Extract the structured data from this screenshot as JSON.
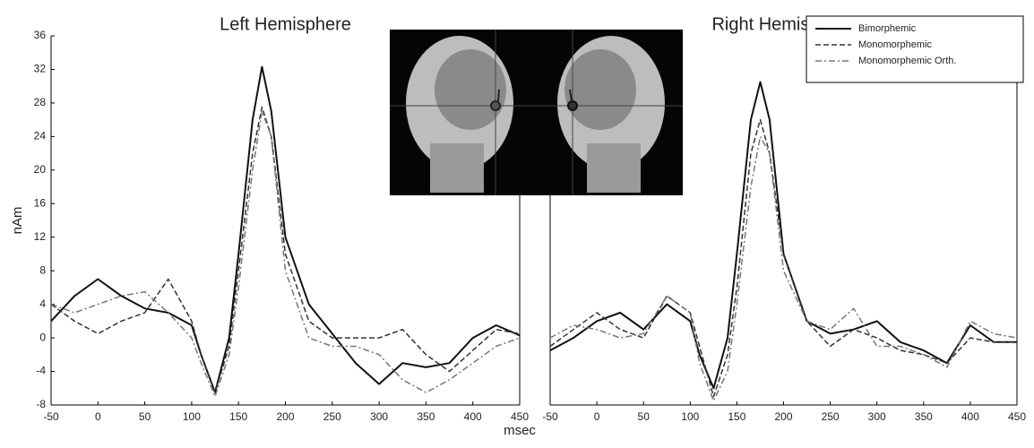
{
  "chart_data": [
    {
      "type": "line",
      "title": "Left Hemisphere",
      "ylabel": "nAm",
      "xlabel": "msec",
      "x": [
        -50,
        -25,
        0,
        25,
        50,
        75,
        100,
        110,
        125,
        140,
        150,
        165,
        175,
        185,
        200,
        225,
        250,
        275,
        300,
        325,
        350,
        375,
        400,
        425,
        450
      ],
      "series": [
        {
          "color": "#111111",
          "style": "solid",
          "values": [
            2,
            5,
            7,
            5,
            3.5,
            3,
            1.5,
            -2,
            -6.5,
            0,
            10,
            26,
            32.3,
            27,
            12,
            4,
            0.5,
            -3,
            -5.5,
            -3,
            -3.5,
            -3,
            0,
            1.5,
            0.3
          ]
        },
        {
          "color": "#333333",
          "style": "dashed",
          "values": [
            4,
            2,
            0.5,
            2,
            3,
            7,
            2,
            -2,
            -6.5,
            -1,
            8,
            22,
            27.5,
            24,
            10,
            2,
            0,
            0,
            0,
            1,
            -2,
            -4,
            -1.5,
            1,
            0.5
          ]
        },
        {
          "color": "#777777",
          "style": "dashdot",
          "values": [
            4,
            3,
            4,
            5,
            5.5,
            3,
            0,
            -3,
            -7,
            -2,
            6,
            20,
            27,
            24,
            8,
            0,
            -1,
            -1,
            -2,
            -5,
            -6.5,
            -5,
            -3,
            -1,
            0
          ]
        }
      ],
      "xlim": [
        -50,
        450
      ],
      "ylim": [
        -8,
        36
      ],
      "xticks": [
        -50,
        0,
        50,
        100,
        150,
        200,
        250,
        300,
        350,
        400,
        450
      ],
      "yticks": [
        -8,
        -4,
        0,
        4,
        8,
        12,
        16,
        20,
        24,
        28,
        32,
        36
      ]
    },
    {
      "type": "line",
      "title": "Right Hemisphere",
      "legend": "upper right",
      "x": [
        -50,
        -25,
        0,
        25,
        50,
        75,
        100,
        110,
        125,
        140,
        150,
        165,
        175,
        185,
        200,
        225,
        250,
        275,
        300,
        325,
        350,
        375,
        400,
        425,
        450
      ],
      "series": [
        {
          "name": "Bimorphemic",
          "color": "#111111",
          "style": "solid",
          "values": [
            -1.5,
            0,
            2,
            3,
            1,
            4,
            2,
            -2,
            -6,
            0,
            10,
            26,
            30.5,
            26,
            10,
            2,
            0.5,
            1,
            2,
            -0.5,
            -1.5,
            -3,
            1.5,
            -0.5,
            -0.5
          ]
        },
        {
          "name": "Monomorphemic",
          "color": "#333333",
          "style": "dashed",
          "values": [
            -1,
            1,
            3,
            1,
            0,
            5,
            3,
            -1,
            -7,
            -2,
            6,
            22,
            26,
            22,
            10,
            2,
            -1,
            1,
            0,
            -1.5,
            -2,
            -3,
            0,
            -0.5,
            -0.5
          ]
        },
        {
          "name": "Monomorphemic Orth.",
          "color": "#777777",
          "style": "dashdot",
          "values": [
            0,
            1.5,
            1,
            0,
            0.5,
            5,
            3,
            -3,
            -7.5,
            -4,
            4,
            18,
            24,
            22,
            8,
            2,
            1,
            3.5,
            -1,
            -1,
            -2,
            -3.5,
            2,
            0.5,
            0
          ]
        }
      ],
      "xlim": [
        -50,
        450
      ],
      "ylim": [
        -8,
        36
      ],
      "xticks": [
        -50,
        0,
        50,
        100,
        150,
        200,
        250,
        300,
        350,
        400,
        450
      ]
    }
  ]
}
